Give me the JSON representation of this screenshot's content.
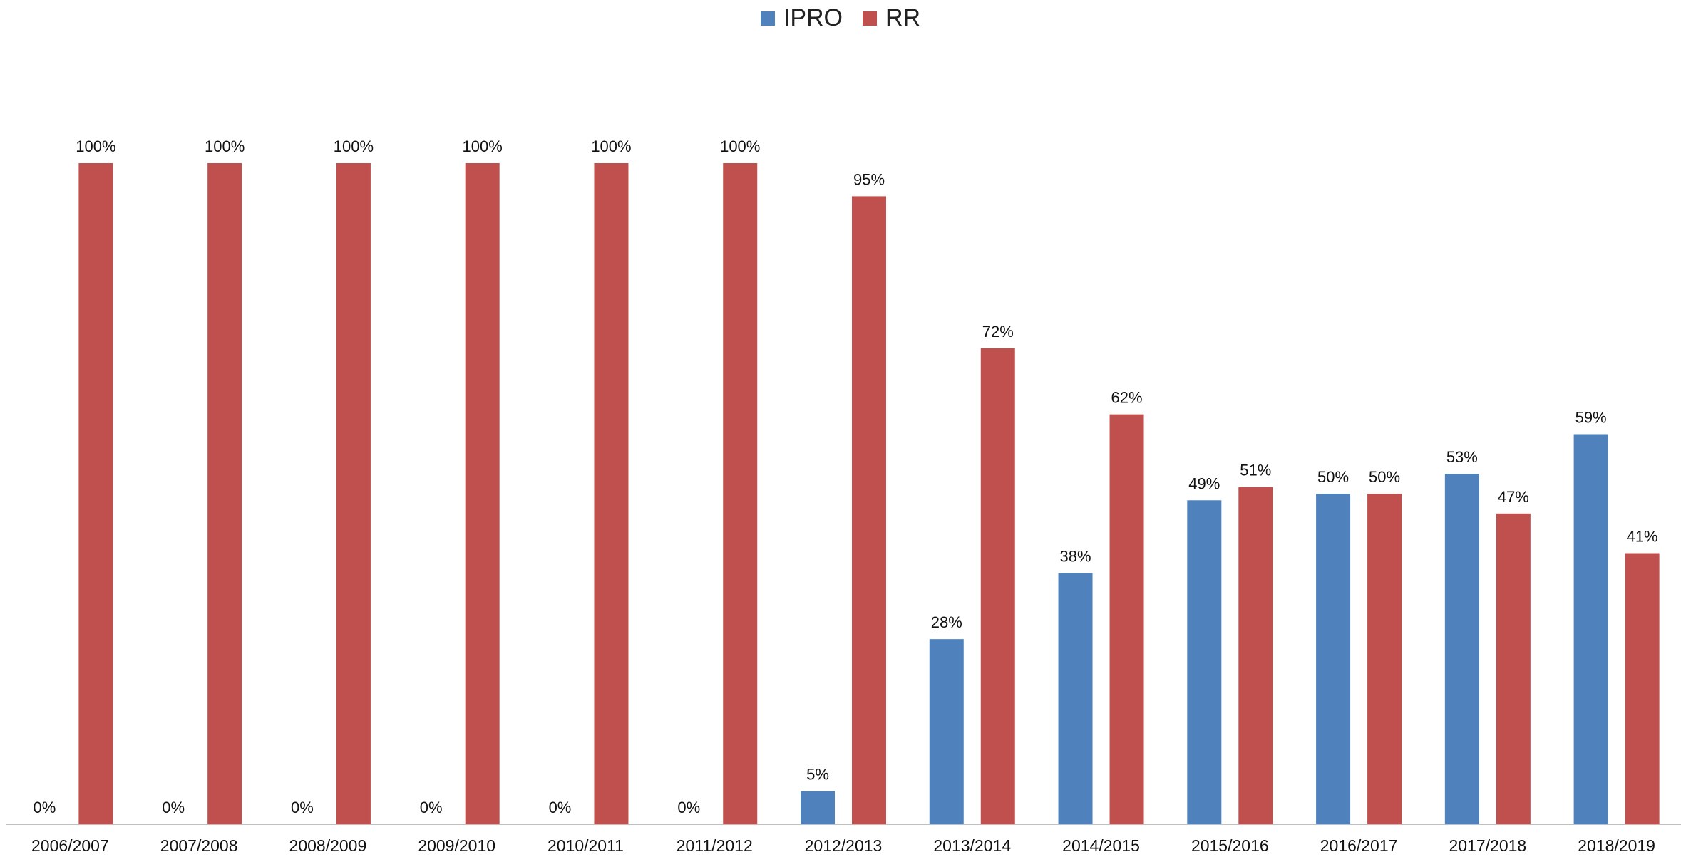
{
  "chart_data": {
    "type": "bar",
    "title": "",
    "xlabel": "",
    "ylabel": "",
    "ylim": [
      0,
      100
    ],
    "grid": false,
    "legend_position": "top-center",
    "value_suffix": "%",
    "categories": [
      "2006/2007",
      "2007/2008",
      "2008/2009",
      "2009/2010",
      "2010/2011",
      "2011/2012",
      "2012/2013",
      "2013/2014",
      "2014/2015",
      "2015/2016",
      "2016/2017",
      "2017/2018",
      "2018/2019"
    ],
    "series": [
      {
        "name": "IPRO",
        "color": "#4F81BD",
        "values": [
          0,
          0,
          0,
          0,
          0,
          0,
          5,
          28,
          38,
          49,
          50,
          53,
          59
        ]
      },
      {
        "name": "RR",
        "color": "#C0504D",
        "values": [
          100,
          100,
          100,
          100,
          100,
          100,
          95,
          72,
          62,
          51,
          50,
          47,
          41
        ]
      }
    ]
  }
}
